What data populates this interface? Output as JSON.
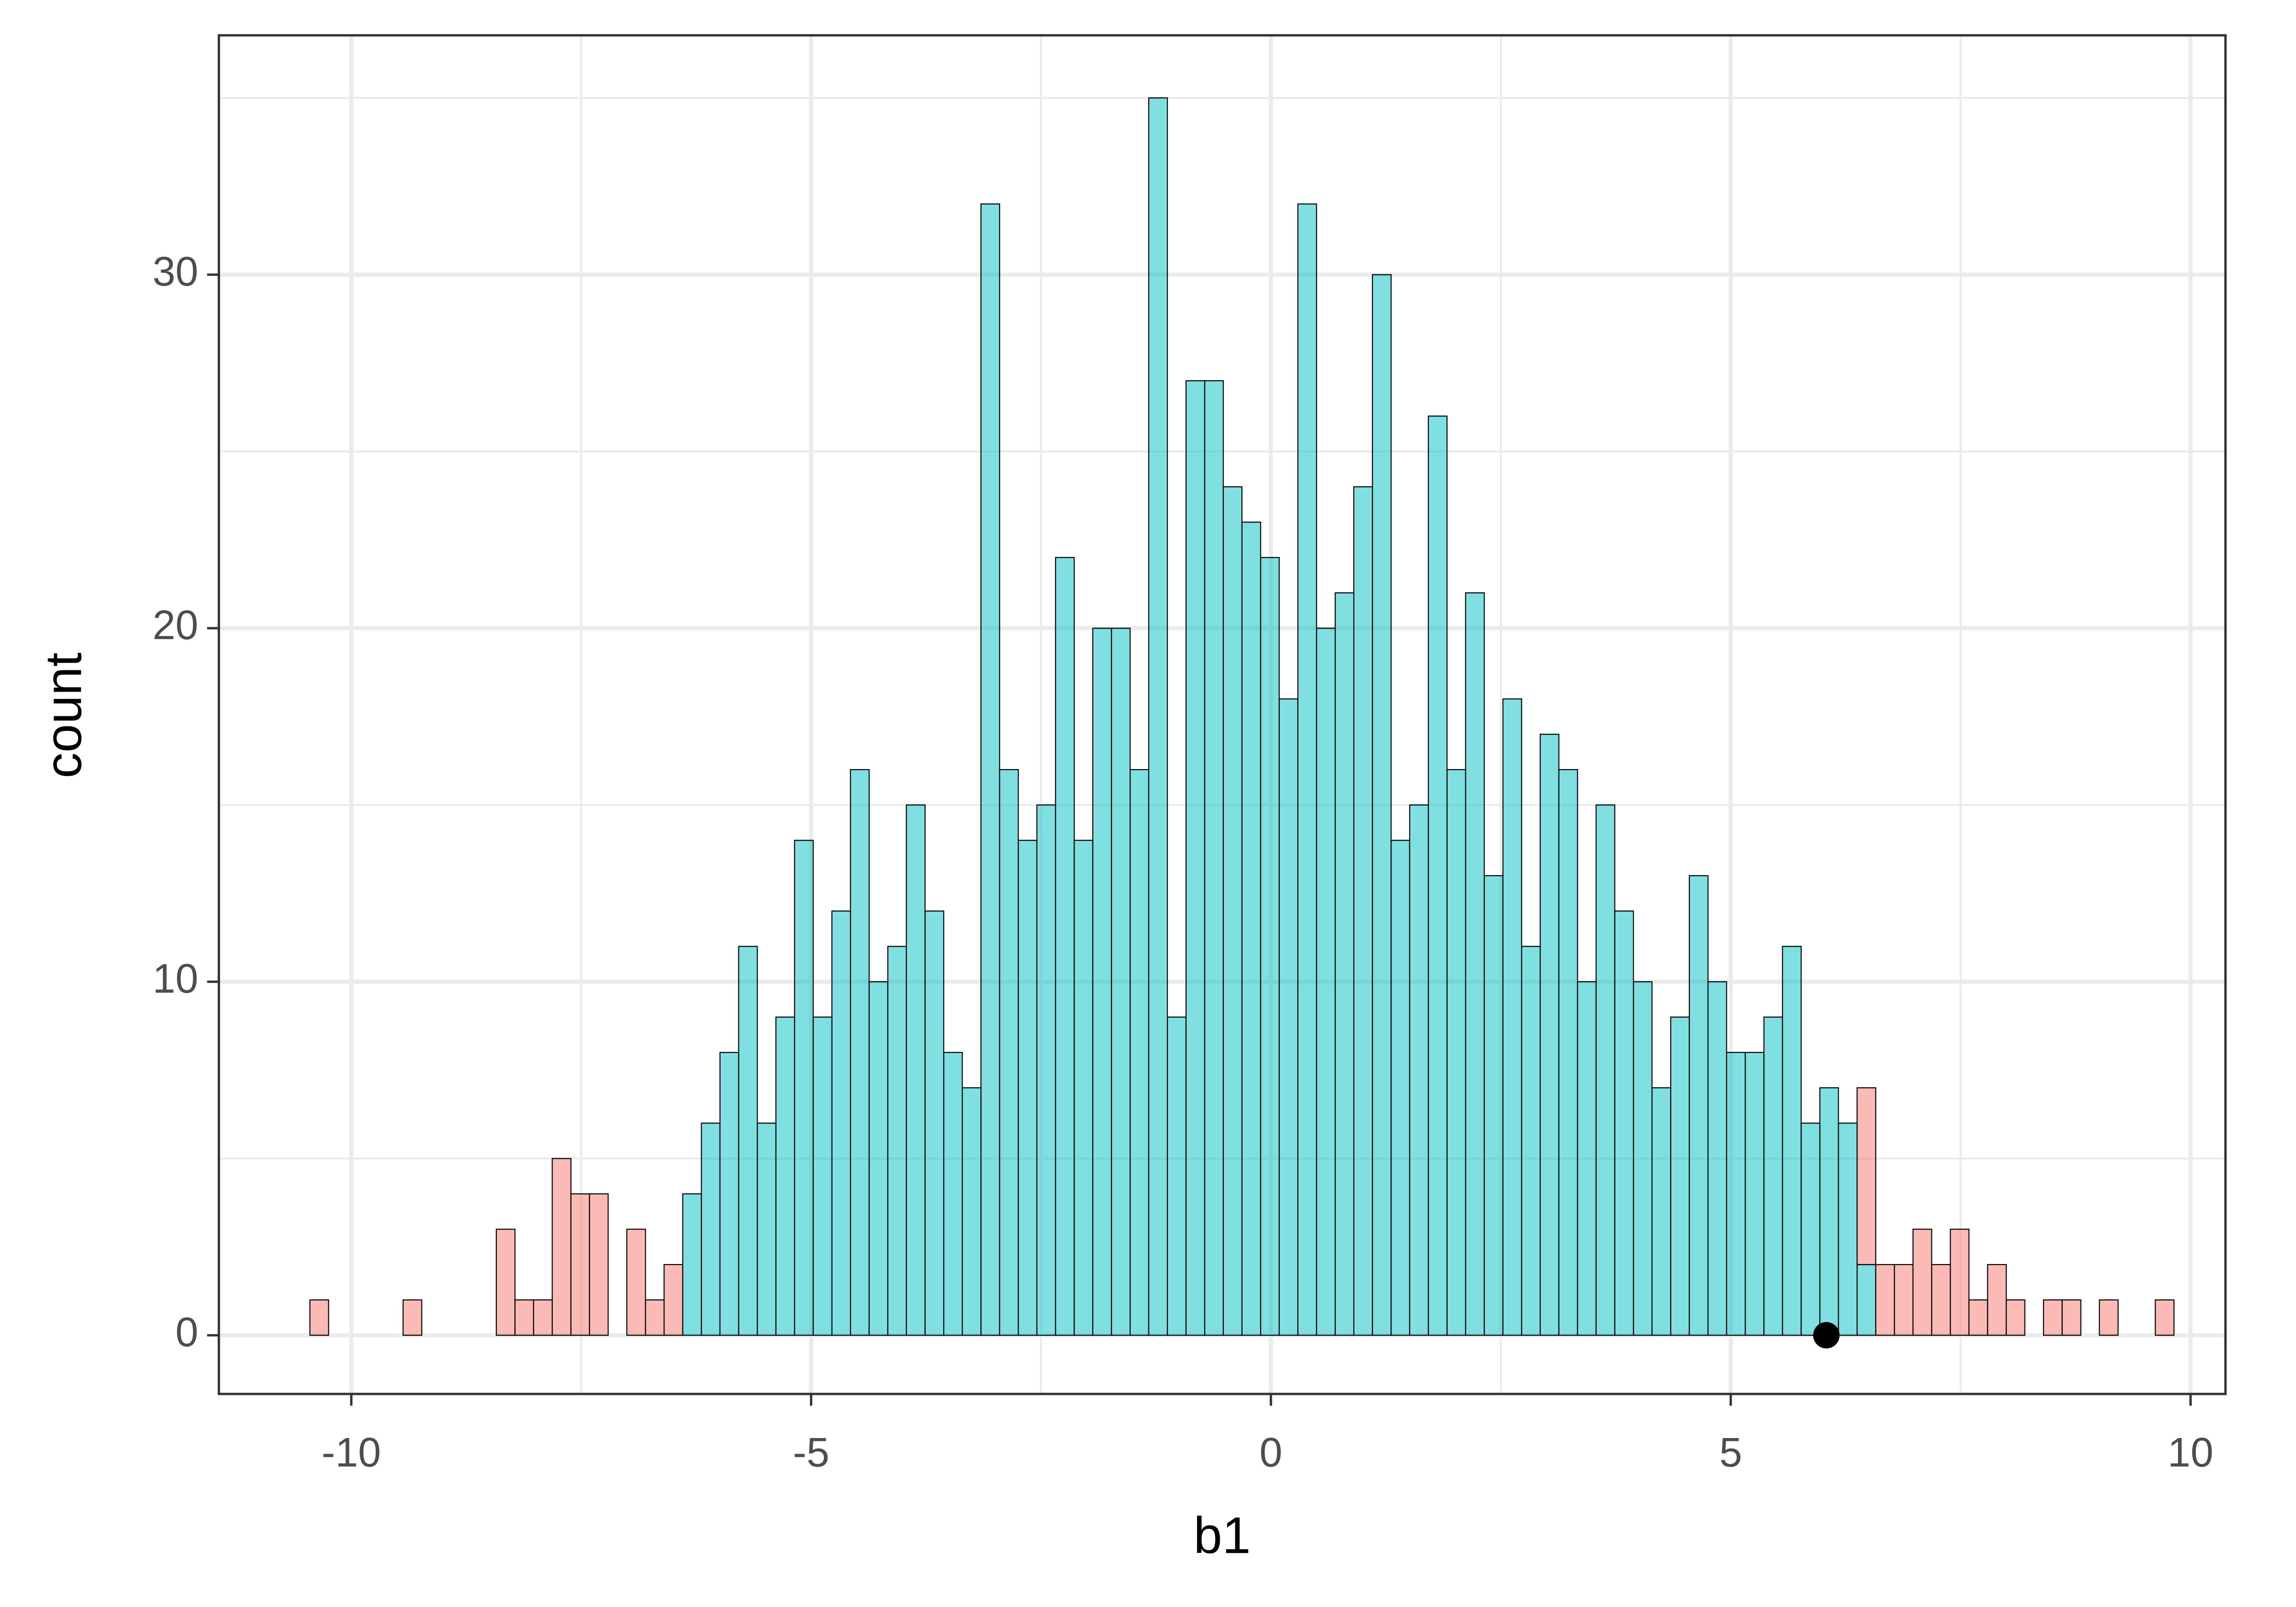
{
  "chart_data": {
    "type": "histogram",
    "x_label": "b1",
    "y_label": "count",
    "bins": [
      -10.45,
      -10.247,
      -10.045,
      -9.842,
      -9.639,
      -9.437,
      -9.234,
      -9.031,
      -8.828,
      -8.626,
      -8.423,
      -8.22,
      -8.018,
      -7.815,
      -7.612,
      -7.41,
      -7.207,
      -7.004,
      -6.801,
      -6.599,
      -6.396,
      -6.193,
      -5.991,
      -5.788,
      -5.585,
      -5.383,
      -5.18,
      -4.977,
      -4.774,
      -4.572,
      -4.369,
      -4.166,
      -3.964,
      -3.761,
      -3.558,
      -3.356,
      -3.153,
      -2.95,
      -2.747,
      -2.545,
      -2.342,
      -2.139,
      -1.937,
      -1.734,
      -1.531,
      -1.329,
      -1.126,
      -0.923,
      -0.72,
      -0.518,
      -0.315,
      -0.112,
      0.09,
      0.293,
      0.496,
      0.699,
      0.901,
      1.104,
      1.307,
      1.509,
      1.712,
      1.915,
      2.117,
      2.32,
      2.523,
      2.726,
      2.928,
      3.131,
      3.334,
      3.536,
      3.739,
      3.942,
      4.144,
      4.347,
      4.55,
      4.753,
      4.955,
      5.158,
      5.361,
      5.563,
      5.766,
      5.969,
      6.171,
      6.374,
      6.577,
      6.78,
      6.982,
      7.185,
      7.388,
      7.59,
      7.793,
      7.996,
      8.198,
      8.401,
      8.604,
      8.807,
      9.009,
      9.212,
      9.415,
      9.617,
      9.82
    ],
    "series": [
      {
        "color": "#F8766D",
        "values": [
          1,
          0,
          0,
          0,
          0,
          1,
          0,
          0,
          0,
          0,
          3,
          1,
          1,
          5,
          4,
          4,
          0,
          3,
          1,
          2,
          0,
          0,
          0,
          0,
          0,
          0,
          0,
          0,
          0,
          0,
          0,
          0,
          0,
          0,
          0,
          0,
          0,
          0,
          0,
          0,
          0,
          0,
          0,
          0,
          0,
          0,
          0,
          0,
          0,
          0,
          0,
          0,
          0,
          0,
          0,
          0,
          0,
          0,
          0,
          0,
          0,
          0,
          0,
          0,
          0,
          0,
          0,
          0,
          0,
          0,
          0,
          0,
          0,
          0,
          0,
          0,
          0,
          0,
          0,
          0,
          0,
          0,
          0,
          5,
          2,
          2,
          3,
          2,
          3,
          1,
          2,
          1,
          0,
          1,
          1,
          0,
          1,
          0,
          0,
          1
        ]
      },
      {
        "color": "#00BFC4",
        "values": [
          0,
          0,
          0,
          0,
          0,
          0,
          0,
          0,
          0,
          0,
          0,
          0,
          0,
          0,
          0,
          0,
          0,
          0,
          0,
          0,
          4,
          6,
          8,
          11,
          6,
          9,
          14,
          9,
          12,
          16,
          10,
          11,
          15,
          12,
          8,
          7,
          32,
          16,
          14,
          15,
          22,
          14,
          20,
          20,
          16,
          35,
          9,
          27,
          27,
          24,
          23,
          22,
          18,
          32,
          20,
          21,
          24,
          30,
          14,
          15,
          26,
          16,
          21,
          13,
          18,
          11,
          17,
          16,
          10,
          15,
          12,
          10,
          7,
          9,
          13,
          10,
          8,
          8,
          9,
          11,
          6,
          7,
          6,
          2,
          0,
          0,
          0,
          0,
          0,
          0,
          0,
          0,
          0,
          0,
          0,
          0,
          0,
          0,
          0,
          0
        ]
      }
    ],
    "point": {
      "x": 6.04,
      "y": 0,
      "color": "#000000"
    },
    "xlim": [
      -11.44,
      10.38
    ],
    "ylim": [
      -1.66,
      36.77
    ],
    "xticks": [
      -10,
      -5,
      0,
      5,
      10
    ],
    "yticks": [
      0,
      10,
      20,
      30
    ],
    "xminor": [
      -7.5,
      -2.5,
      2.5,
      7.5
    ],
    "yminor": [
      5,
      15,
      25,
      35
    ],
    "grid": true
  }
}
